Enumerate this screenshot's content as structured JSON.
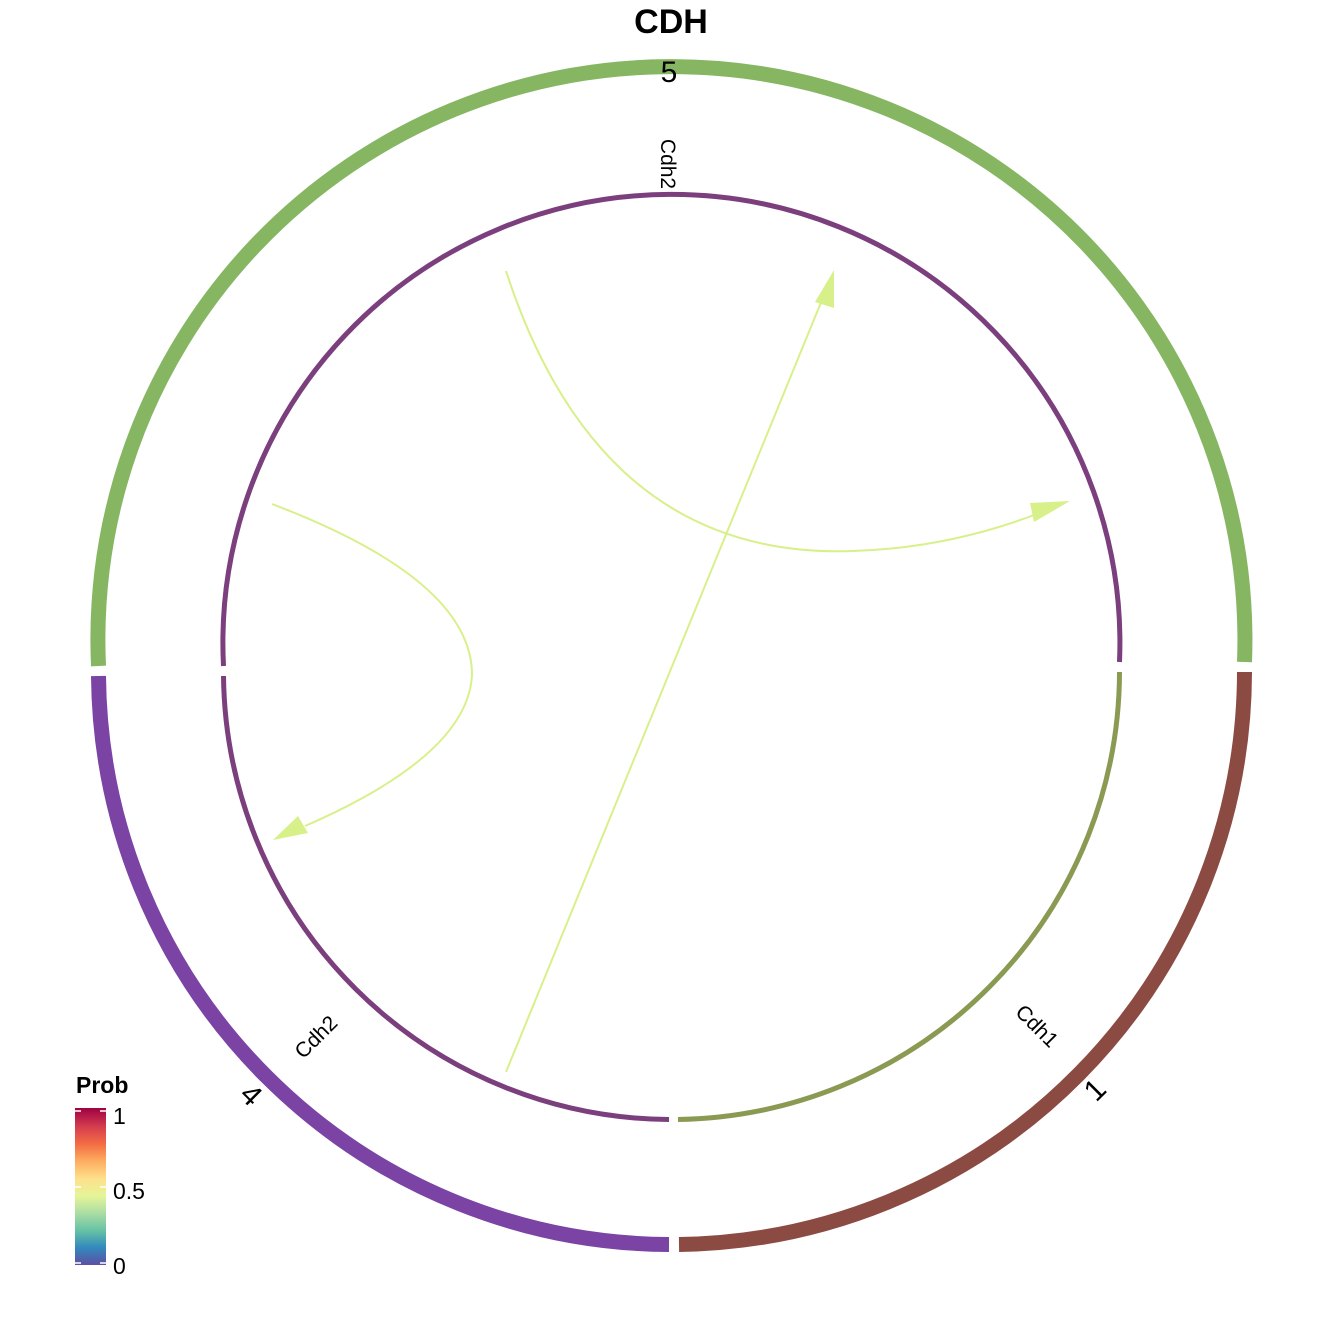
{
  "title": "CDH",
  "groups": [
    {
      "id": "5",
      "label": "5",
      "color": "#86B662"
    },
    {
      "id": "1",
      "label": "1",
      "color": "#8B4B43"
    },
    {
      "id": "4",
      "label": "4",
      "color": "#7A43A4"
    }
  ],
  "ligand_labels": [
    {
      "text": "Cdh2",
      "group": "5"
    },
    {
      "text": "Cdh1",
      "group": "1"
    },
    {
      "text": "Cdh2",
      "group": "4"
    }
  ],
  "inner_track_colors": {
    "purple": "#7B3F7E",
    "olive": "#8A9A52"
  },
  "link_color": "#D8F08A",
  "legend": {
    "title": "Prob",
    "ticks": [
      "0",
      "0.5",
      "1"
    ],
    "colors": [
      "#5E4FA2",
      "#3288BD",
      "#66C2A5",
      "#ABDDA4",
      "#E6F598",
      "#FEE08B",
      "#FDAE61",
      "#F46D43",
      "#D53E4F",
      "#9E0142"
    ]
  }
}
